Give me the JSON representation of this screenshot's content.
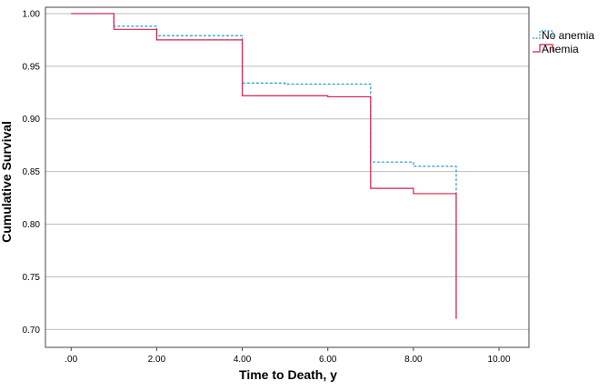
{
  "chart_data": {
    "type": "line",
    "title": "",
    "xlabel": "Time to Death, y",
    "ylabel": "Cumulative Survival",
    "xlim": [
      -0.6,
      10.7
    ],
    "ylim": [
      0.683,
      1.006
    ],
    "xticks": [
      0,
      2,
      4,
      6,
      8,
      10
    ],
    "xtick_labels": [
      ".00",
      "2.00",
      "4.00",
      "6.00",
      "8.00",
      "10.00"
    ],
    "yticks": [
      0.7,
      0.75,
      0.8,
      0.85,
      0.9,
      0.95,
      1.0
    ],
    "ytick_labels": [
      "0.70",
      "0.75",
      "0.80",
      "0.85",
      "0.90",
      "0.95",
      "1.00"
    ],
    "grid": "horizontal",
    "legend_position": "top-right",
    "series": [
      {
        "name": "No anemia",
        "color": "#1f9ae0",
        "style": "dashed",
        "x": [
          0,
          1,
          2,
          4,
          5,
          6,
          7,
          8,
          9,
          9
        ],
        "y": [
          1.0,
          0.988,
          0.979,
          0.934,
          0.933,
          0.933,
          0.859,
          0.855,
          0.854,
          0.71
        ]
      },
      {
        "name": "Anemia",
        "color": "#d81e4c",
        "style": "solid",
        "x": [
          0,
          1,
          2,
          4,
          5,
          6,
          7,
          8,
          9,
          9
        ],
        "y": [
          1.0,
          0.985,
          0.975,
          0.922,
          0.922,
          0.921,
          0.834,
          0.829,
          0.829,
          0.71
        ]
      }
    ]
  }
}
